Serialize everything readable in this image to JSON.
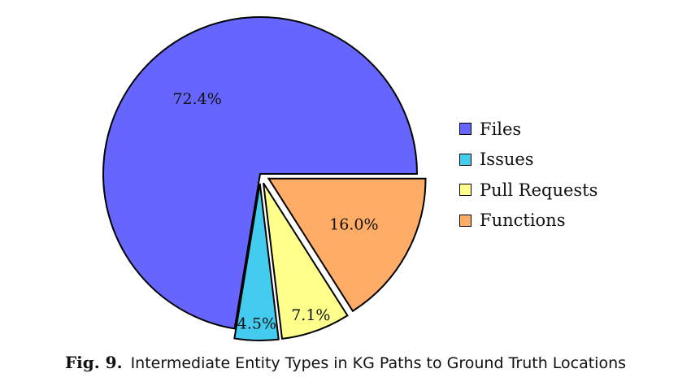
{
  "chart_data": {
    "type": "pie",
    "categories": [
      "Files",
      "Issues",
      "Pull Requests",
      "Functions"
    ],
    "values": [
      72.4,
      4.5,
      7.1,
      16.0
    ],
    "labels": [
      "72.4%",
      "4.5%",
      "7.1%",
      "16.0%"
    ],
    "colors": [
      "#6666ff",
      "#44ccf0",
      "#ffff8c",
      "#ffad66"
    ],
    "exploded": [
      false,
      true,
      true,
      true
    ],
    "legend_position": "right"
  },
  "caption": {
    "number": "Fig. 9.",
    "text": "Intermediate Entity Types in KG Paths to Ground Truth Locations"
  }
}
